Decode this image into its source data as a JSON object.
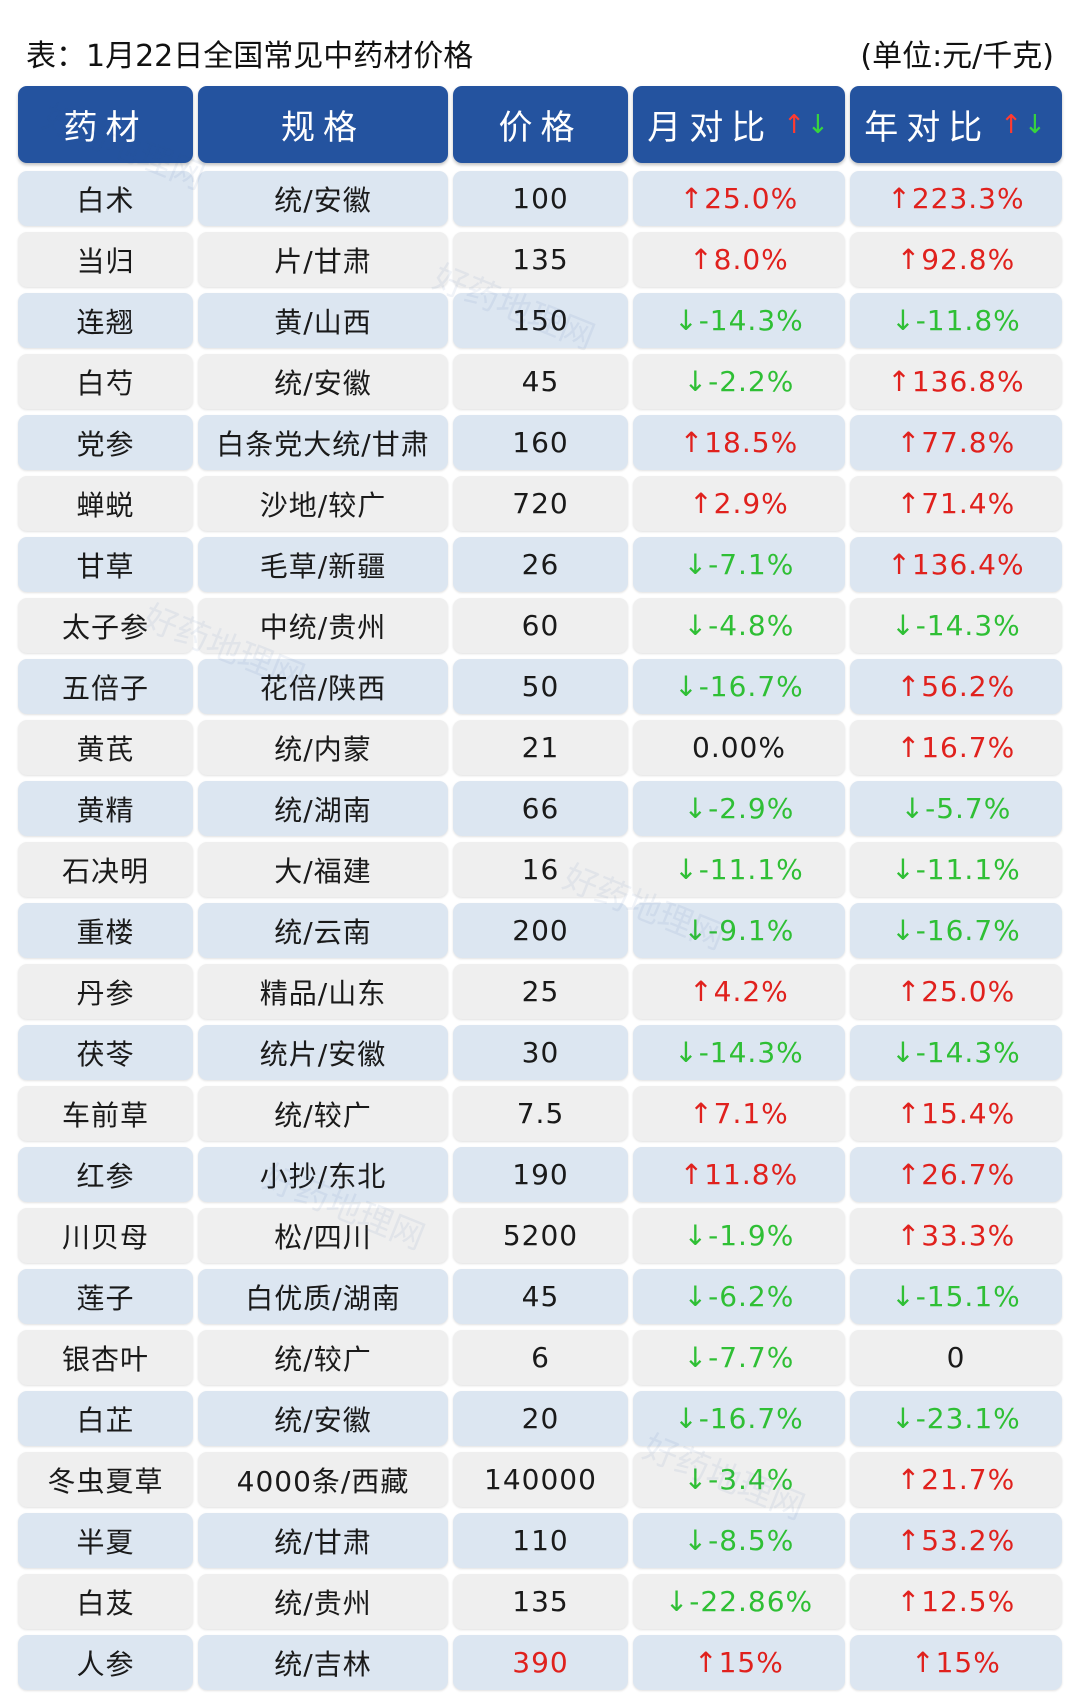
{
  "caption": {
    "title": "表：1月22日全国常见中药材价格",
    "unit": "(单位:元/千克)"
  },
  "header": {
    "col1": "药材",
    "col2": "规格",
    "col3": "价格",
    "col4": "月对比",
    "col5": "年对比",
    "arrow_up": "↑",
    "arrow_down": "↓"
  },
  "watermark": "好药地理网",
  "colors": {
    "header_bg": "#24539f",
    "row_odd": "#dce6f1",
    "row_even": "#efefef",
    "up": "#e0211d",
    "down": "#2fbf35"
  },
  "rows": [
    {
      "name": "白术",
      "spec": "统/安徽",
      "price": "100",
      "month": "↑25.0%",
      "year": "↑223.3%"
    },
    {
      "name": "当归",
      "spec": "片/甘肃",
      "price": "135",
      "month": "↑8.0%",
      "year": "↑92.8%"
    },
    {
      "name": "连翘",
      "spec": "黄/山西",
      "price": "150",
      "month": "↓-14.3%",
      "year": "↓-11.8%"
    },
    {
      "name": "白芍",
      "spec": "统/安徽",
      "price": "45",
      "month": "↓-2.2%",
      "year": "↑136.8%"
    },
    {
      "name": "党参",
      "spec": "白条党大统/甘肃",
      "price": "160",
      "month": "↑18.5%",
      "year": "↑77.8%"
    },
    {
      "name": "蝉蜕",
      "spec": "沙地/较广",
      "price": "720",
      "month": "↑2.9%",
      "year": "↑71.4%"
    },
    {
      "name": "甘草",
      "spec": "毛草/新疆",
      "price": "26",
      "month": "↓-7.1%",
      "year": "↑136.4%"
    },
    {
      "name": "太子参",
      "spec": "中统/贵州",
      "price": "60",
      "month": "↓-4.8%",
      "year": "↓-14.3%"
    },
    {
      "name": "五倍子",
      "spec": "花倍/陕西",
      "price": "50",
      "month": "↓-16.7%",
      "year": "↑56.2%"
    },
    {
      "name": "黄芪",
      "spec": "统/内蒙",
      "price": "21",
      "month": "0.00%",
      "year": "↑16.7%"
    },
    {
      "name": "黄精",
      "spec": "统/湖南",
      "price": "66",
      "month": "↓-2.9%",
      "year": "↓-5.7%"
    },
    {
      "name": "石决明",
      "spec": "大/福建",
      "price": "16",
      "month": "↓-11.1%",
      "year": "↓-11.1%"
    },
    {
      "name": "重楼",
      "spec": "统/云南",
      "price": "200",
      "month": "↓-9.1%",
      "year": "↓-16.7%"
    },
    {
      "name": "丹参",
      "spec": "精品/山东",
      "price": "25",
      "month": "↑4.2%",
      "year": "↑25.0%"
    },
    {
      "name": "茯苓",
      "spec": "统片/安徽",
      "price": "30",
      "month": "↓-14.3%",
      "year": "↓-14.3%"
    },
    {
      "name": "车前草",
      "spec": "统/较广",
      "price": "7.5",
      "month": "↑7.1%",
      "year": "↑15.4%"
    },
    {
      "name": "红参",
      "spec": "小抄/东北",
      "price": "190",
      "month": "↑11.8%",
      "year": "↑26.7%"
    },
    {
      "name": "川贝母",
      "spec": "松/四川",
      "price": "5200",
      "month": "↓-1.9%",
      "year": "↑33.3%"
    },
    {
      "name": "莲子",
      "spec": "白优质/湖南",
      "price": "45",
      "month": "↓-6.2%",
      "year": "↓-15.1%"
    },
    {
      "name": "银杏叶",
      "spec": "统/较广",
      "price": "6",
      "month": "↓-7.7%",
      "year": "0"
    },
    {
      "name": "白芷",
      "spec": "统/安徽",
      "price": "20",
      "month": "↓-16.7%",
      "year": "↓-23.1%"
    },
    {
      "name": "冬虫夏草",
      "spec": "4000条/西藏",
      "price": "140000",
      "month": "↓-3.4%",
      "year": "↑21.7%"
    },
    {
      "name": "半夏",
      "spec": "统/甘肃",
      "price": "110",
      "month": "↓-8.5%",
      "year": "↑53.2%"
    },
    {
      "name": "白芨",
      "spec": "统/贵州",
      "price": "135",
      "month": "↓-22.86%",
      "year": "↑12.5%"
    },
    {
      "name": "人参",
      "spec": "统/吉林",
      "price": "390",
      "month": "↑15%",
      "year": "↑15%",
      "price_color": "red"
    }
  ]
}
